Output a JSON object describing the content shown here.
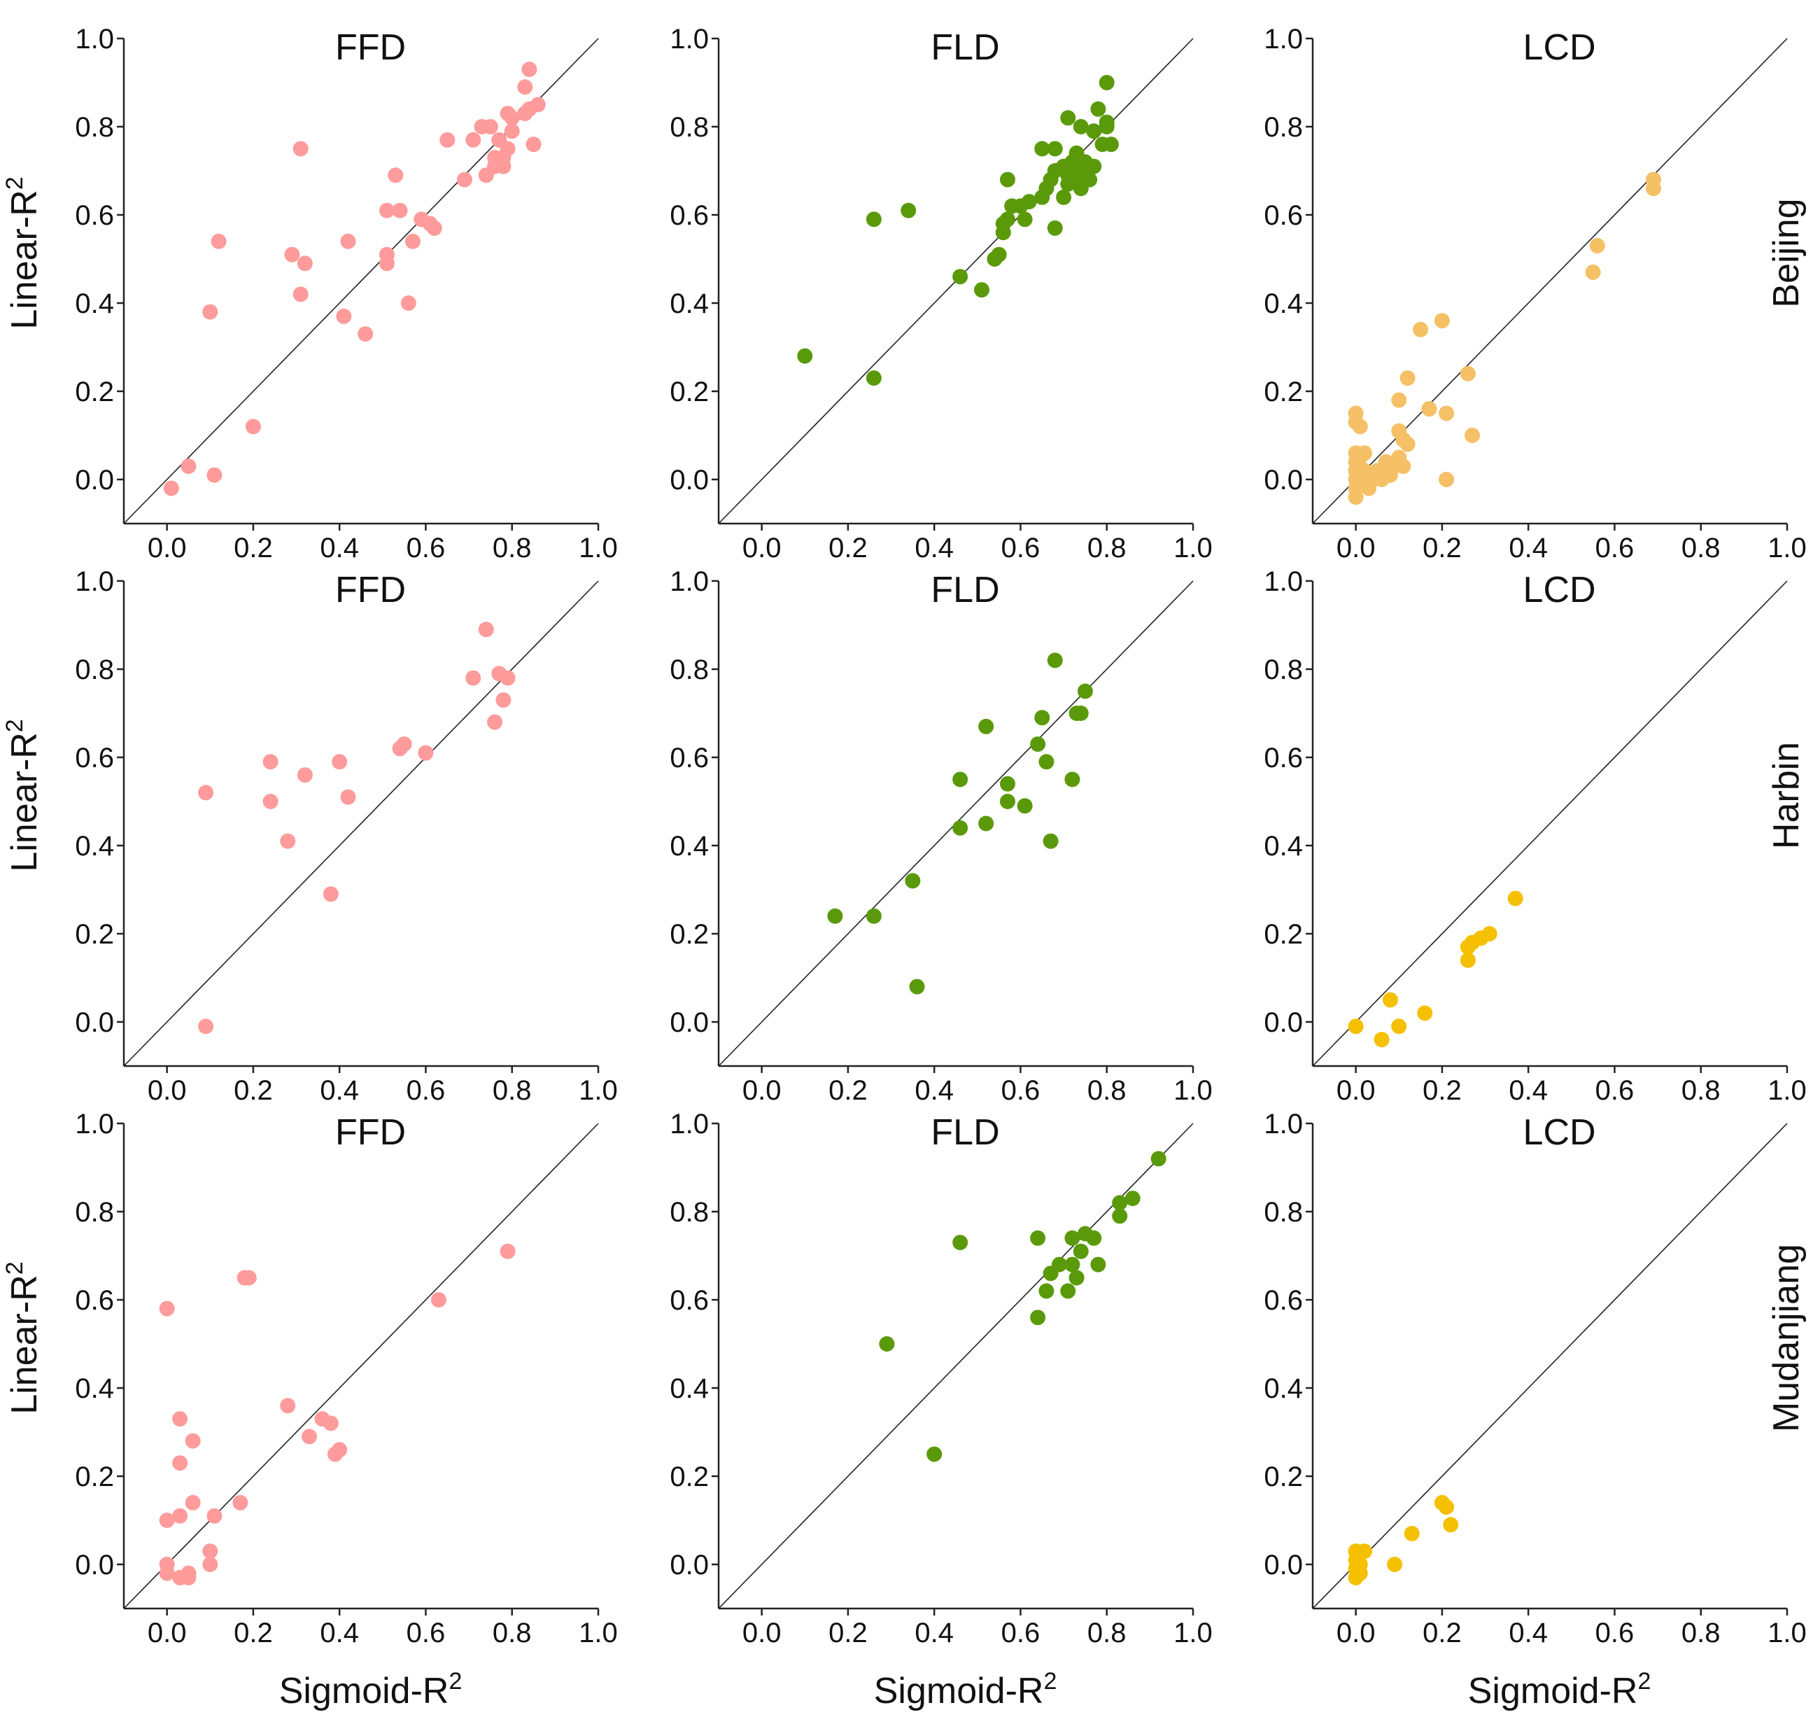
{
  "chart_data": {
    "type": "scatter",
    "x_title": "Sigmoid-R",
    "y_title": "Linear-R",
    "superscript": "2",
    "xlim": [
      -0.1,
      1.0
    ],
    "ylim": [
      -0.1,
      1.0
    ],
    "ticks": [
      "0.0",
      "0.2",
      "0.4",
      "0.6",
      "0.8",
      "1.0"
    ],
    "reference_line": "y = x",
    "colors": {
      "FFD": "#ff9b9b",
      "FLD": "#5a9a0a",
      "LCD_Beijing": "#f5c066",
      "LCD": "#f5c000"
    },
    "rows": [
      {
        "label": "Beijing",
        "panels": [
          {
            "title": "FFD",
            "color": "#ff9b9b",
            "points": [
              [
                0.01,
                -0.02
              ],
              [
                0.05,
                0.03
              ],
              [
                0.11,
                0.01
              ],
              [
                0.1,
                0.38
              ],
              [
                0.12,
                0.54
              ],
              [
                0.2,
                0.12
              ],
              [
                0.31,
                0.75
              ],
              [
                0.29,
                0.51
              ],
              [
                0.32,
                0.49
              ],
              [
                0.31,
                0.42
              ],
              [
                0.41,
                0.37
              ],
              [
                0.42,
                0.54
              ],
              [
                0.46,
                0.33
              ],
              [
                0.51,
                0.49
              ],
              [
                0.51,
                0.51
              ],
              [
                0.51,
                0.61
              ],
              [
                0.53,
                0.69
              ],
              [
                0.54,
                0.61
              ],
              [
                0.56,
                0.4
              ],
              [
                0.57,
                0.54
              ],
              [
                0.59,
                0.59
              ],
              [
                0.61,
                0.58
              ],
              [
                0.62,
                0.57
              ],
              [
                0.65,
                0.77
              ],
              [
                0.69,
                0.68
              ],
              [
                0.71,
                0.77
              ],
              [
                0.73,
                0.8
              ],
              [
                0.74,
                0.69
              ],
              [
                0.75,
                0.8
              ],
              [
                0.76,
                0.71
              ],
              [
                0.76,
                0.73
              ],
              [
                0.77,
                0.77
              ],
              [
                0.78,
                0.73
              ],
              [
                0.79,
                0.75
              ],
              [
                0.78,
                0.71
              ],
              [
                0.8,
                0.79
              ],
              [
                0.8,
                0.82
              ],
              [
                0.79,
                0.83
              ],
              [
                0.83,
                0.83
              ],
              [
                0.84,
                0.84
              ],
              [
                0.85,
                0.76
              ],
              [
                0.86,
                0.85
              ],
              [
                0.83,
                0.89
              ],
              [
                0.84,
                0.93
              ]
            ]
          },
          {
            "title": "FLD",
            "color": "#5a9a0a",
            "points": [
              [
                0.1,
                0.28
              ],
              [
                0.26,
                0.23
              ],
              [
                0.26,
                0.59
              ],
              [
                0.34,
                0.61
              ],
              [
                0.46,
                0.46
              ],
              [
                0.51,
                0.43
              ],
              [
                0.54,
                0.5
              ],
              [
                0.55,
                0.51
              ],
              [
                0.56,
                0.56
              ],
              [
                0.56,
                0.58
              ],
              [
                0.57,
                0.59
              ],
              [
                0.58,
                0.62
              ],
              [
                0.6,
                0.62
              ],
              [
                0.61,
                0.59
              ],
              [
                0.62,
                0.63
              ],
              [
                0.57,
                0.68
              ],
              [
                0.65,
                0.75
              ],
              [
                0.65,
                0.64
              ],
              [
                0.66,
                0.66
              ],
              [
                0.67,
                0.68
              ],
              [
                0.68,
                0.57
              ],
              [
                0.68,
                0.7
              ],
              [
                0.68,
                0.75
              ],
              [
                0.7,
                0.71
              ],
              [
                0.7,
                0.64
              ],
              [
                0.71,
                0.67
              ],
              [
                0.71,
                0.69
              ],
              [
                0.71,
                0.82
              ],
              [
                0.72,
                0.7
              ],
              [
                0.72,
                0.72
              ],
              [
                0.73,
                0.68
              ],
              [
                0.73,
                0.74
              ],
              [
                0.74,
                0.66
              ],
              [
                0.74,
                0.8
              ],
              [
                0.75,
                0.7
              ],
              [
                0.75,
                0.72
              ],
              [
                0.76,
                0.68
              ],
              [
                0.77,
                0.71
              ],
              [
                0.77,
                0.79
              ],
              [
                0.78,
                0.84
              ],
              [
                0.79,
                0.76
              ],
              [
                0.8,
                0.8
              ],
              [
                0.81,
                0.76
              ],
              [
                0.8,
                0.81
              ],
              [
                0.8,
                0.9
              ]
            ]
          },
          {
            "title": "LCD",
            "color": "#f5c066",
            "points": [
              [
                0.0,
                -0.04
              ],
              [
                0.0,
                -0.02
              ],
              [
                0.0,
                0.0
              ],
              [
                0.0,
                0.02
              ],
              [
                0.0,
                0.04
              ],
              [
                0.0,
                0.06
              ],
              [
                0.0,
                0.13
              ],
              [
                0.0,
                0.15
              ],
              [
                0.01,
                0.01
              ],
              [
                0.01,
                0.05
              ],
              [
                0.01,
                0.12
              ],
              [
                0.02,
                -0.01
              ],
              [
                0.02,
                0.02
              ],
              [
                0.02,
                0.06
              ],
              [
                0.03,
                -0.02
              ],
              [
                0.04,
                0.0
              ],
              [
                0.05,
                0.02
              ],
              [
                0.06,
                0.0
              ],
              [
                0.07,
                0.04
              ],
              [
                0.07,
                0.02
              ],
              [
                0.08,
                0.01
              ],
              [
                0.09,
                0.03
              ],
              [
                0.1,
                0.05
              ],
              [
                0.1,
                0.11
              ],
              [
                0.1,
                0.18
              ],
              [
                0.11,
                0.09
              ],
              [
                0.11,
                0.03
              ],
              [
                0.12,
                0.08
              ],
              [
                0.12,
                0.23
              ],
              [
                0.15,
                0.34
              ],
              [
                0.17,
                0.16
              ],
              [
                0.2,
                0.36
              ],
              [
                0.21,
                0.0
              ],
              [
                0.21,
                0.15
              ],
              [
                0.26,
                0.24
              ],
              [
                0.27,
                0.1
              ],
              [
                0.55,
                0.47
              ],
              [
                0.56,
                0.53
              ],
              [
                0.69,
                0.66
              ],
              [
                0.69,
                0.68
              ]
            ]
          }
        ]
      },
      {
        "label": "Harbin",
        "panels": [
          {
            "title": "FFD",
            "color": "#ff9b9b",
            "points": [
              [
                0.09,
                -0.01
              ],
              [
                0.09,
                0.52
              ],
              [
                0.24,
                0.59
              ],
              [
                0.24,
                0.5
              ],
              [
                0.28,
                0.41
              ],
              [
                0.32,
                0.56
              ],
              [
                0.38,
                0.29
              ],
              [
                0.4,
                0.59
              ],
              [
                0.42,
                0.51
              ],
              [
                0.54,
                0.62
              ],
              [
                0.55,
                0.63
              ],
              [
                0.6,
                0.61
              ],
              [
                0.71,
                0.78
              ],
              [
                0.74,
                0.89
              ],
              [
                0.76,
                0.68
              ],
              [
                0.77,
                0.79
              ],
              [
                0.78,
                0.73
              ],
              [
                0.79,
                0.78
              ]
            ]
          },
          {
            "title": "FLD",
            "color": "#5a9a0a",
            "points": [
              [
                0.17,
                0.24
              ],
              [
                0.26,
                0.24
              ],
              [
                0.35,
                0.32
              ],
              [
                0.36,
                0.08
              ],
              [
                0.46,
                0.44
              ],
              [
                0.46,
                0.55
              ],
              [
                0.52,
                0.45
              ],
              [
                0.52,
                0.67
              ],
              [
                0.57,
                0.54
              ],
              [
                0.57,
                0.5
              ],
              [
                0.61,
                0.49
              ],
              [
                0.64,
                0.63
              ],
              [
                0.65,
                0.69
              ],
              [
                0.66,
                0.59
              ],
              [
                0.67,
                0.41
              ],
              [
                0.68,
                0.82
              ],
              [
                0.72,
                0.55
              ],
              [
                0.73,
                0.7
              ],
              [
                0.74,
                0.7
              ],
              [
                0.75,
                0.75
              ]
            ]
          },
          {
            "title": "LCD",
            "color": "#f5c000",
            "points": [
              [
                0.0,
                -0.01
              ],
              [
                0.06,
                -0.04
              ],
              [
                0.08,
                0.05
              ],
              [
                0.1,
                -0.01
              ],
              [
                0.16,
                0.02
              ],
              [
                0.26,
                0.14
              ],
              [
                0.26,
                0.17
              ],
              [
                0.27,
                0.18
              ],
              [
                0.29,
                0.19
              ],
              [
                0.31,
                0.2
              ],
              [
                0.37,
                0.28
              ]
            ]
          }
        ]
      },
      {
        "label": "Mudanjiang",
        "panels": [
          {
            "title": "FFD",
            "color": "#ff9b9b",
            "points": [
              [
                0.0,
                -0.02
              ],
              [
                0.0,
                0.0
              ],
              [
                0.0,
                0.1
              ],
              [
                0.0,
                0.58
              ],
              [
                0.03,
                -0.03
              ],
              [
                0.03,
                0.11
              ],
              [
                0.03,
                0.23
              ],
              [
                0.03,
                0.33
              ],
              [
                0.05,
                -0.03
              ],
              [
                0.05,
                -0.02
              ],
              [
                0.06,
                0.14
              ],
              [
                0.06,
                0.28
              ],
              [
                0.1,
                0.0
              ],
              [
                0.1,
                0.03
              ],
              [
                0.11,
                0.11
              ],
              [
                0.17,
                0.14
              ],
              [
                0.18,
                0.65
              ],
              [
                0.19,
                0.65
              ],
              [
                0.28,
                0.36
              ],
              [
                0.33,
                0.29
              ],
              [
                0.36,
                0.33
              ],
              [
                0.38,
                0.32
              ],
              [
                0.39,
                0.25
              ],
              [
                0.4,
                0.26
              ],
              [
                0.63,
                0.6
              ],
              [
                0.79,
                0.71
              ]
            ]
          },
          {
            "title": "FLD",
            "color": "#5a9a0a",
            "points": [
              [
                0.29,
                0.5
              ],
              [
                0.4,
                0.25
              ],
              [
                0.46,
                0.73
              ],
              [
                0.64,
                0.56
              ],
              [
                0.64,
                0.74
              ],
              [
                0.66,
                0.62
              ],
              [
                0.67,
                0.66
              ],
              [
                0.69,
                0.68
              ],
              [
                0.71,
                0.62
              ],
              [
                0.72,
                0.74
              ],
              [
                0.72,
                0.68
              ],
              [
                0.73,
                0.65
              ],
              [
                0.74,
                0.71
              ],
              [
                0.75,
                0.75
              ],
              [
                0.77,
                0.74
              ],
              [
                0.78,
                0.68
              ],
              [
                0.83,
                0.79
              ],
              [
                0.83,
                0.82
              ],
              [
                0.86,
                0.83
              ],
              [
                0.92,
                0.92
              ]
            ]
          },
          {
            "title": "LCD",
            "color": "#f5c000",
            "points": [
              [
                0.0,
                -0.03
              ],
              [
                0.0,
                -0.01
              ],
              [
                0.0,
                0.01
              ],
              [
                0.0,
                0.03
              ],
              [
                0.01,
                -0.02
              ],
              [
                0.01,
                0.0
              ],
              [
                0.02,
                0.03
              ],
              [
                0.09,
                0.0
              ],
              [
                0.13,
                0.07
              ],
              [
                0.2,
                0.14
              ],
              [
                0.21,
                0.13
              ],
              [
                0.22,
                0.09
              ]
            ]
          }
        ]
      }
    ]
  }
}
